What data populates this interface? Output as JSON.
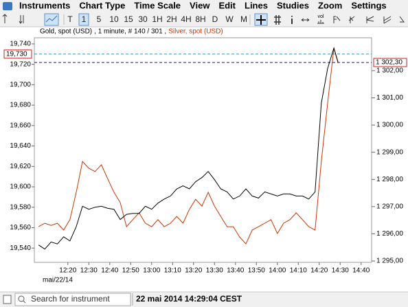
{
  "menu": [
    "Instruments",
    "Chart Type",
    "Time Scale",
    "View",
    "Edit",
    "Lines",
    "Studies",
    "Zoom",
    "Settings"
  ],
  "toolbar": {
    "buttons": [
      "T",
      "1",
      "5",
      "10",
      "15",
      "30",
      "1H",
      "2H",
      "4H",
      "8H",
      "D",
      "W",
      "M"
    ],
    "vol_label": "vol"
  },
  "chart_data": {
    "type": "line",
    "series_info": ", 1 minute, # 140 / 301 ,",
    "x": [
      "12:06",
      "12:09",
      "12:12",
      "12:15",
      "12:18",
      "12:21",
      "12:24",
      "12:27",
      "12:30",
      "12:33",
      "12:36",
      "12:39",
      "12:42",
      "12:45",
      "12:48",
      "12:51",
      "12:54",
      "12:57",
      "13:00",
      "13:03",
      "13:06",
      "13:09",
      "13:12",
      "13:15",
      "13:18",
      "13:21",
      "13:24",
      "13:27",
      "13:30",
      "13:33",
      "13:36",
      "13:39",
      "13:42",
      "13:45",
      "13:48",
      "13:51",
      "13:54",
      "13:57",
      "14:00",
      "14:03",
      "14:06",
      "14:09",
      "14:12",
      "14:15",
      "14:18",
      "14:21",
      "14:24",
      "14:27",
      "14:29"
    ],
    "xlim": [
      "12:04",
      "14:45"
    ],
    "xticks": [
      "12:20",
      "12:30",
      "12:40",
      "12:50",
      "13:00",
      "13:10",
      "13:20",
      "13:30",
      "13:40",
      "13:50",
      "14:00",
      "14:10",
      "14:20",
      "14:30",
      "14:40"
    ],
    "x_date_label": "mai/22/14",
    "ylim": [
      19526,
      19746
    ],
    "yticks": [
      {
        "value": 19540,
        "label": "19,540"
      },
      {
        "value": 19560,
        "label": "19,560"
      },
      {
        "value": 19580,
        "label": "19,580"
      },
      {
        "value": 19600,
        "label": "19,600"
      },
      {
        "value": 19620,
        "label": "19,620"
      },
      {
        "value": 19640,
        "label": "19,640"
      },
      {
        "value": 19660,
        "label": "19,660"
      },
      {
        "value": 19680,
        "label": "19,680"
      },
      {
        "value": 19700,
        "label": "19,700"
      },
      {
        "value": 19720,
        "label": "19,720"
      },
      {
        "value": 19740,
        "label": "19,740"
      }
    ],
    "y2lim": [
      1294.95,
      1303.21
    ],
    "y2ticks": [
      {
        "value": 1295,
        "label": "1 295,00"
      },
      {
        "value": 1296,
        "label": "1 296,00"
      },
      {
        "value": 1297,
        "label": "1 297,00"
      },
      {
        "value": 1298,
        "label": "1 298,00"
      },
      {
        "value": 1299,
        "label": "1 299,00"
      },
      {
        "value": 1300,
        "label": "1 300,00"
      },
      {
        "value": 1301,
        "label": "1 301,00"
      },
      {
        "value": 1302,
        "label": "1 302,00"
      }
    ],
    "price_markers": [
      {
        "value": 19730,
        "label": "19,730",
        "axis": "y",
        "color": "#2a9bb5"
      },
      {
        "value": 1302.3,
        "label": "1 302,30",
        "axis": "y2",
        "color": "#1a1a7a"
      }
    ],
    "series": [
      {
        "name": "Gold, spot (USD)",
        "color": "#000000",
        "values": [
          19543,
          19539,
          19546,
          19544,
          19551,
          19547,
          19561,
          19581,
          19578,
          19580,
          19581,
          19579,
          19578,
          19568,
          19573,
          19574,
          19574,
          19581,
          19578,
          19584,
          19588,
          19591,
          19598,
          19601,
          19598,
          19605,
          19609,
          19615,
          19607,
          19598,
          19595,
          19588,
          19591,
          19598,
          19591,
          19589,
          19595,
          19593,
          19591,
          19593,
          19593,
          19591,
          19591,
          19588,
          19595,
          19682,
          19716,
          19736,
          19722
        ]
      },
      {
        "name": "Silver, spot (USD)",
        "color": "#cc3300",
        "axis": "y2",
        "values": [
          1296.26,
          1296.39,
          1296.31,
          1296.39,
          1296.14,
          1296.52,
          1297.53,
          1298.66,
          1298.41,
          1298.29,
          1298.54,
          1298.03,
          1297.53,
          1297.15,
          1296.26,
          1296.52,
          1296.77,
          1296.39,
          1296.26,
          1296.52,
          1296.26,
          1296.39,
          1296.64,
          1296.39,
          1296.9,
          1297.27,
          1297.02,
          1297.53,
          1297.02,
          1296.64,
          1296.26,
          1296.26,
          1295.88,
          1295.63,
          1296.14,
          1296.26,
          1296.39,
          1296.52,
          1296.01,
          1296.39,
          1296.52,
          1296.77,
          1296.52,
          1296.26,
          1296.14,
          1298.66,
          1300.81,
          1302.83,
          1302.28
        ]
      }
    ]
  },
  "status": {
    "search_placeholder": "Search for instrument",
    "timestamp": "22 mai 2014 14:29:04 CEST"
  }
}
